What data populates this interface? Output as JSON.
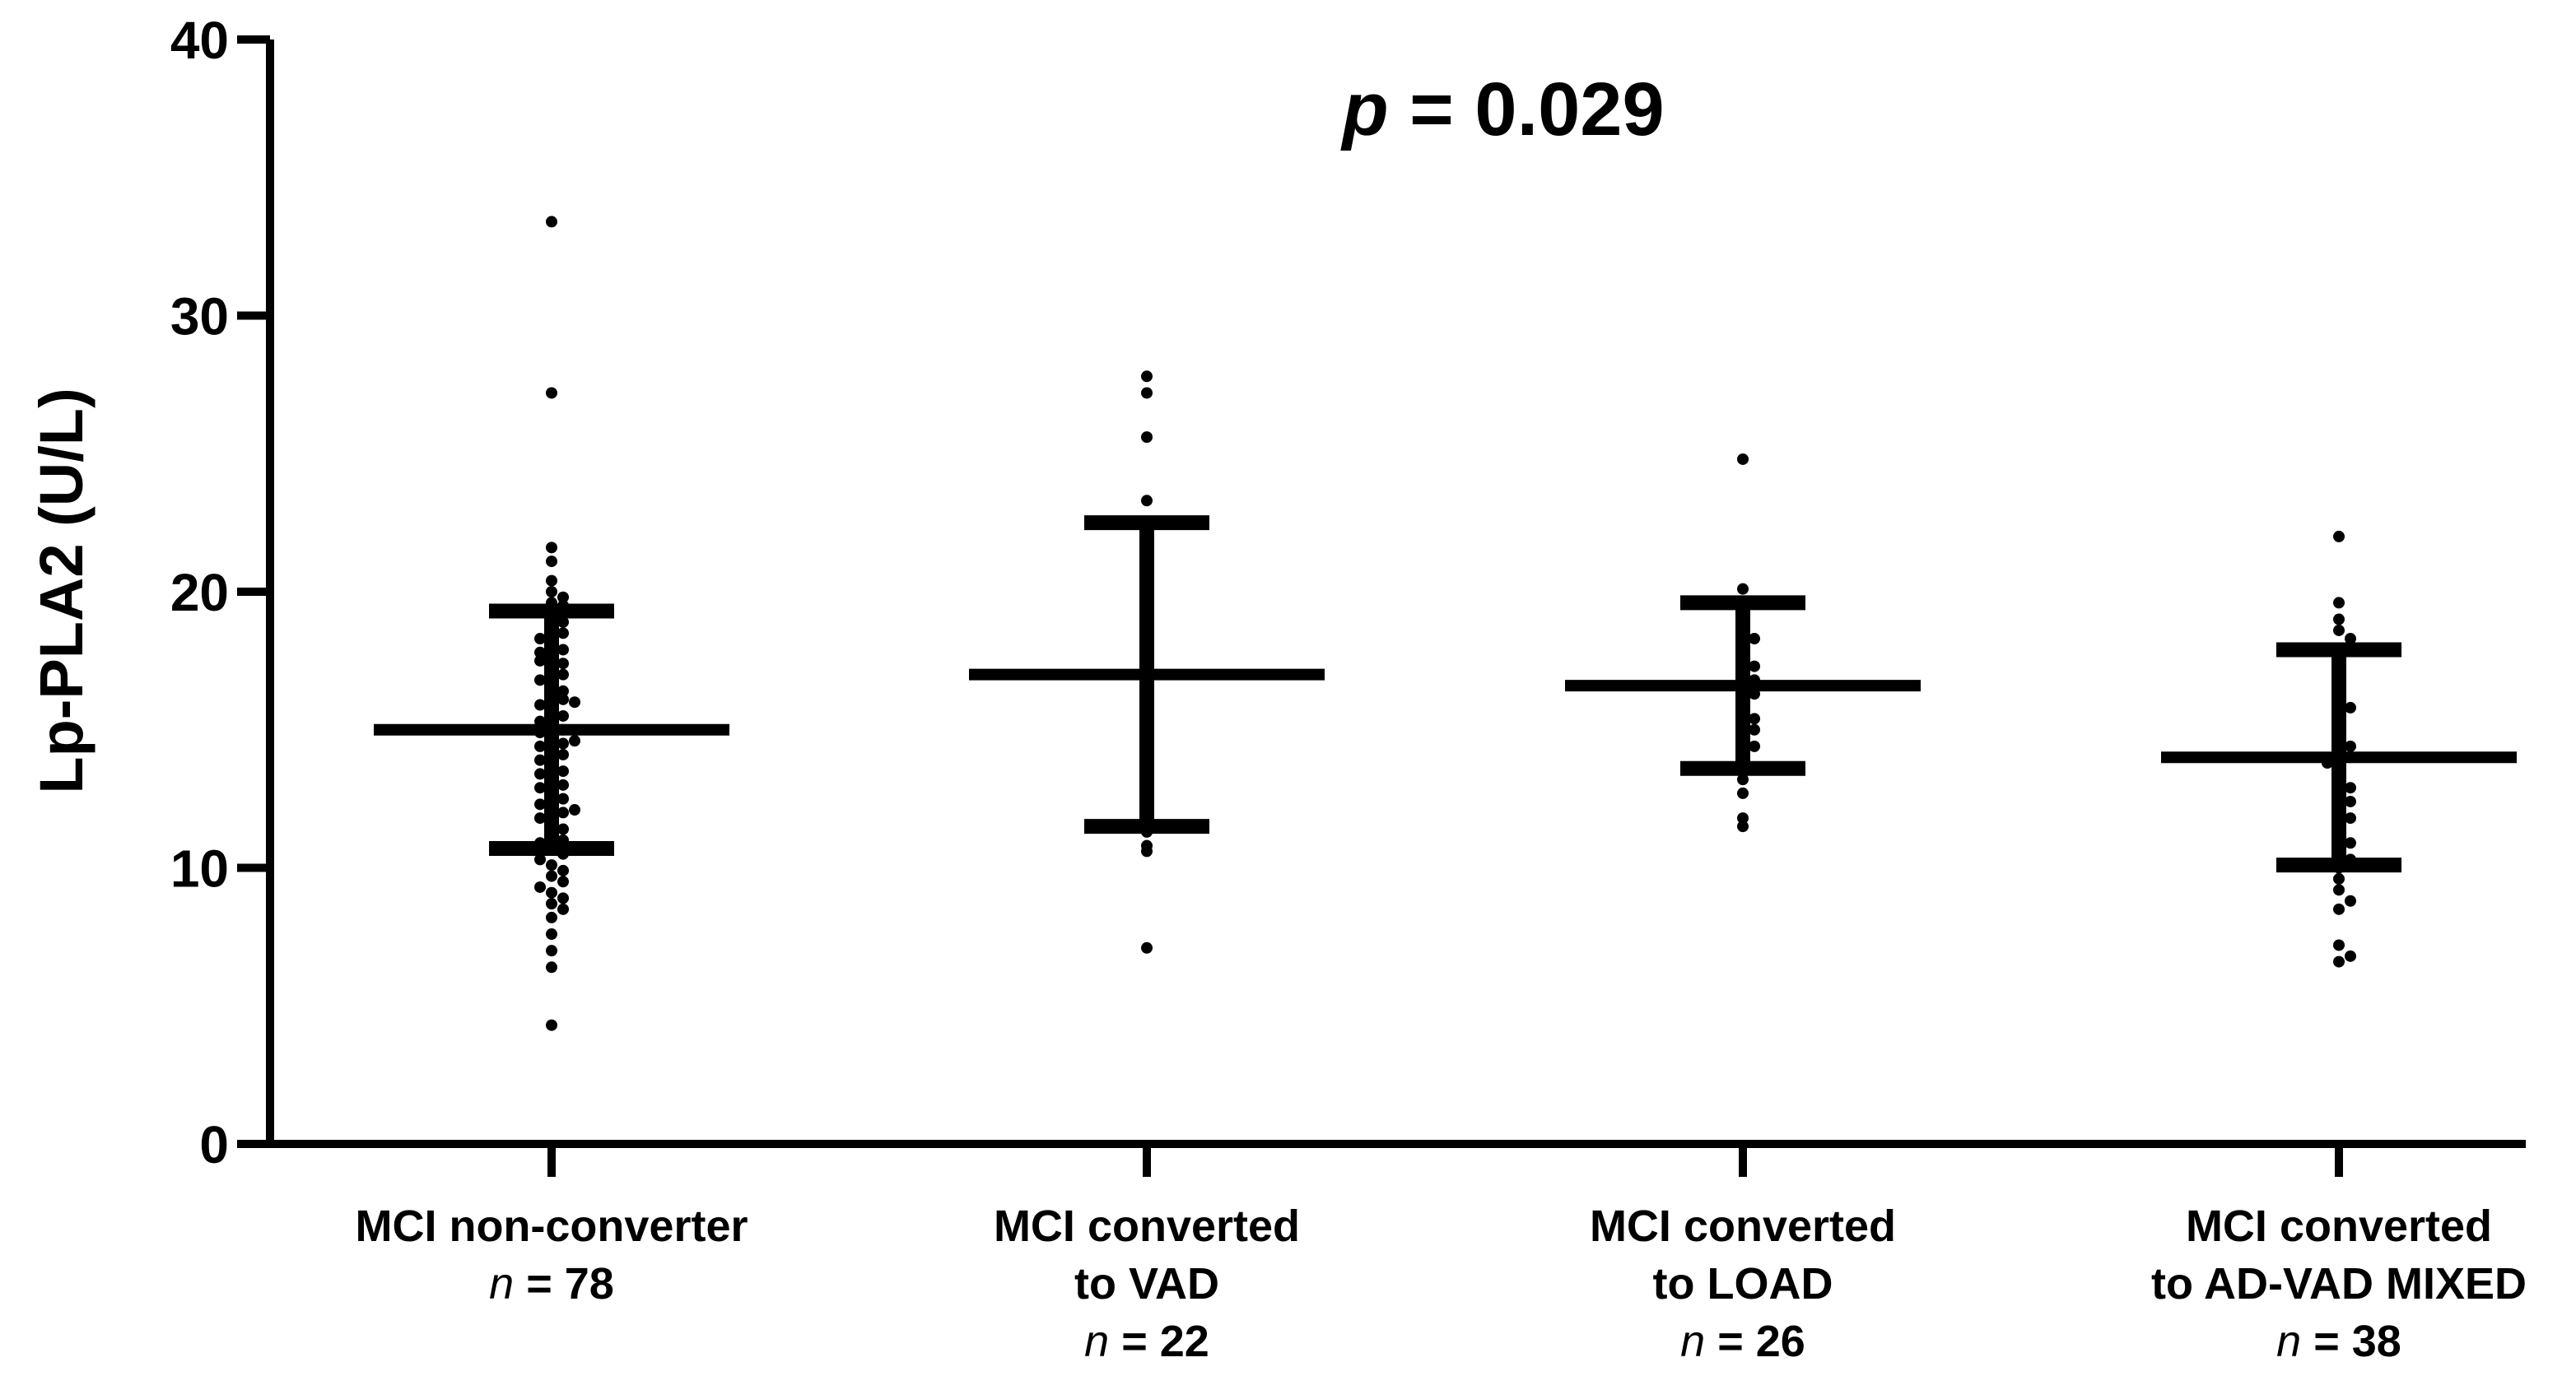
{
  "chart_data": {
    "type": "scatter",
    "subtype": "dot-plot with mean and SD error bars",
    "ylabel": "Lp-PLA2 (U/L)",
    "ylim": [
      0,
      40
    ],
    "yticks": [
      0,
      10,
      20,
      30,
      40
    ],
    "annotation": {
      "symbol": "p",
      "rest": " = 0.029"
    },
    "groups": [
      {
        "name": "MCI non-converter",
        "label_lines": [
          "MCI non-converter"
        ],
        "n_symbol": "n",
        "n_text": " = 78",
        "mean": 15.0,
        "sd_low": 10.7,
        "sd_high": 19.3,
        "points": [
          33.4,
          27.2,
          21.6,
          21.1,
          20.4,
          20.0,
          19.8,
          19.6,
          19.5,
          19.3,
          19.1,
          18.9,
          18.7,
          18.5,
          18.3,
          18.1,
          17.9,
          17.8,
          17.6,
          17.4,
          17.2,
          17.0,
          16.8,
          16.6,
          16.4,
          16.2,
          16.1,
          15.9,
          15.7,
          15.5,
          15.3,
          15.2,
          15.0,
          14.9,
          14.7,
          14.5,
          14.4,
          14.2,
          14.1,
          13.9,
          13.7,
          13.5,
          13.4,
          13.2,
          13.0,
          12.9,
          12.7,
          12.5,
          12.3,
          12.2,
          12.0,
          11.8,
          11.6,
          11.4,
          11.2,
          11.0,
          10.9,
          10.7,
          10.5,
          10.3,
          10.1,
          9.9,
          9.7,
          9.5,
          9.3,
          9.1,
          8.9,
          8.7,
          8.5,
          8.2,
          7.6,
          7.0,
          6.4,
          4.3,
          17.5,
          14.6,
          12.1,
          16.0
        ]
      },
      {
        "name": "MCI converted to VAD",
        "label_lines": [
          "MCI converted",
          "to VAD"
        ],
        "n_symbol": "n",
        "n_text": " = 22",
        "mean": 17.0,
        "sd_low": 11.5,
        "sd_high": 22.5,
        "points": [
          27.8,
          27.2,
          25.6,
          23.3,
          22.4,
          21.6,
          21.2,
          20.0,
          18.8,
          17.4,
          16.9,
          16.3,
          15.0,
          14.5,
          13.8,
          13.0,
          12.4,
          11.8,
          11.3,
          10.8,
          10.6,
          7.1
        ]
      },
      {
        "name": "MCI converted to LOAD",
        "label_lines": [
          "MCI converted",
          "to LOAD"
        ],
        "n_symbol": "n",
        "n_text": " = 26",
        "mean": 16.6,
        "sd_low": 13.6,
        "sd_high": 19.6,
        "points": [
          24.8,
          20.1,
          19.6,
          19.0,
          18.6,
          18.3,
          18.0,
          17.6,
          17.3,
          17.0,
          16.8,
          16.6,
          16.3,
          16.0,
          15.7,
          15.4,
          15.2,
          15.0,
          14.7,
          14.4,
          14.0,
          13.6,
          13.2,
          12.7,
          11.8,
          11.5
        ]
      },
      {
        "name": "MCI converted to AD-VAD MIXED",
        "label_lines": [
          "MCI converted",
          "to AD-VAD MIXED"
        ],
        "n_symbol": "n",
        "n_text": " = 38",
        "mean": 14.0,
        "sd_low": 10.1,
        "sd_high": 17.9,
        "points": [
          22.0,
          19.6,
          19.0,
          18.6,
          18.3,
          17.9,
          17.4,
          16.8,
          16.6,
          16.2,
          15.8,
          15.4,
          15.0,
          14.7,
          14.4,
          14.2,
          14.0,
          13.8,
          13.5,
          13.2,
          12.9,
          12.6,
          12.4,
          12.1,
          11.8,
          11.5,
          11.2,
          10.9,
          10.6,
          10.3,
          10.0,
          9.6,
          9.2,
          8.8,
          8.5,
          7.2,
          6.8,
          6.6
        ]
      }
    ],
    "colors": {
      "ink": "#000000",
      "background": "#ffffff"
    }
  }
}
